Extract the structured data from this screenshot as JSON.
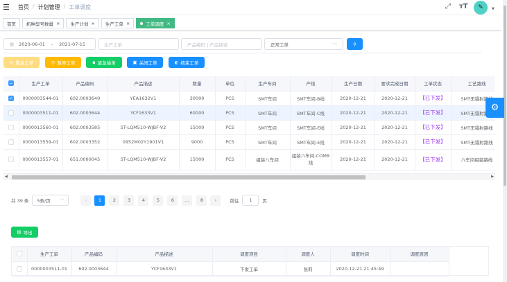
{
  "header": {
    "breadcrumb": [
      "首页",
      "计划管理",
      "工单调度"
    ]
  },
  "tags": [
    {
      "label": "首页"
    },
    {
      "label": "机种型号数量"
    },
    {
      "label": "生产计划"
    },
    {
      "label": "生产工单"
    },
    {
      "label": "工单调度",
      "active": true
    }
  ],
  "search": {
    "date_start": "2020-06-01",
    "date_sep": "-",
    "date_end": "2021-07-15",
    "order_placeholder": "生产工单",
    "product_placeholder": "产品编码 | 产品描述",
    "type_value": "正常工单"
  },
  "actions": {
    "restart": "重启工单",
    "pause": "暂停工单",
    "urgent": "紧急插单",
    "close": "关闭工单",
    "finish": "结束工单",
    "export": "导出"
  },
  "colors": {
    "primary": "#1890ff",
    "green": "#13ce66",
    "warning": "#ffba00",
    "status": "#a23bf2"
  },
  "main_table": {
    "headers": [
      "生产工单",
      "产品编码",
      "产品描述",
      "数量",
      "单位",
      "生产车间",
      "产线",
      "生产日期",
      "要求完成日期",
      "工单状态",
      "工艺路线"
    ],
    "rows": [
      {
        "checked": true,
        "cells": [
          "0000003544-01",
          "602.0003640",
          "YEA1632V1",
          "30000",
          "PCS",
          "SMT车间",
          "SMT车间-B线",
          "2020-12-21",
          "2020-12-21",
          "【已下发】",
          "SMT无镭射路线"
        ]
      },
      {
        "checked": false,
        "cells": [
          "0000003511-01",
          "602.0003644",
          "YCF1633V1",
          "60000",
          "PCS",
          "SMT车间",
          "SMT车间-C线",
          "2020-12-21",
          "2020-12-21",
          "【已下发】",
          "SMT无镭射路线"
        ]
      },
      {
        "checked": false,
        "cells": [
          "0000013560-01",
          "602.0003585",
          "ST-LQM510-WJBF-V2",
          "15000",
          "PCS",
          "SMT车间",
          "SMT车间-E线",
          "2020-12-21",
          "2020-12-21",
          "【已下发】",
          "SMT无镭射路线"
        ]
      },
      {
        "checked": false,
        "cells": [
          "0000013559-01",
          "602.0003352",
          "0952M02Y1901V1",
          "9000",
          "PCS",
          "SMT车间",
          "SMT车间-E线",
          "2020-12-21",
          "2020-12-21",
          "【已下发】",
          "SMT无镭射路线"
        ]
      },
      {
        "checked": false,
        "cells": [
          "0000013557-01",
          "651.0000045",
          "ST-LQM510-WJBF-V2",
          "15000",
          "PCS",
          "组装八车间",
          "组装八车间-COMB线",
          "2020-12-21",
          "2020-12-21",
          "【已下发】",
          "八车间组装路线"
        ]
      }
    ]
  },
  "pagination": {
    "total": "共 39 条",
    "page_size": "5条/页",
    "pages": [
      "1",
      "2",
      "3",
      "4",
      "5",
      "6",
      "...",
      "8"
    ],
    "current": "1",
    "goto_label": "前往",
    "goto_value": "1",
    "goto_suffix": "页"
  },
  "log_table": {
    "headers": [
      "生产工单",
      "产品编码",
      "产品描述",
      "调度项目",
      "调度人",
      "调度时间",
      "调度原因"
    ],
    "rows": [
      [
        "0000003511-01",
        "602.0003644",
        "YCF1633V1",
        "下发工单",
        "张莉",
        "2020-12-21 21:45:49",
        ""
      ]
    ]
  }
}
